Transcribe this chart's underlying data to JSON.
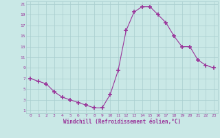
{
  "x": [
    0,
    1,
    2,
    3,
    4,
    5,
    6,
    7,
    8,
    9,
    10,
    11,
    12,
    13,
    14,
    15,
    16,
    17,
    18,
    19,
    20,
    21,
    22,
    23
  ],
  "y": [
    7,
    6.5,
    6,
    4.5,
    3.5,
    3,
    2.5,
    2,
    1.5,
    1.5,
    4,
    8.5,
    16,
    19.5,
    20.5,
    20.5,
    19,
    17.5,
    15,
    13,
    13,
    10.5,
    9.5,
    9
  ],
  "line_color": "#993399",
  "marker": "D",
  "marker_size": 2,
  "bg_color": "#c9e8e6",
  "grid_color": "#a8cece",
  "xlabel": "Windchill (Refroidissement éolien,°C)",
  "xlabel_color": "#993399",
  "tick_color": "#993399",
  "ylim": [
    1,
    21
  ],
  "xlim": [
    0,
    23
  ],
  "yticks": [
    1,
    3,
    5,
    7,
    9,
    11,
    13,
    15,
    17,
    19,
    21
  ],
  "xticks": [
    0,
    1,
    2,
    3,
    4,
    5,
    6,
    7,
    8,
    9,
    10,
    11,
    12,
    13,
    14,
    15,
    16,
    17,
    18,
    19,
    20,
    21,
    22,
    23
  ]
}
